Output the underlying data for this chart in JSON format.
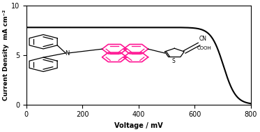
{
  "xlabel": "Voltage / mV",
  "ylabel": "Current Density  mA cm⁻²",
  "xlim": [
    0,
    800
  ],
  "ylim": [
    0,
    10
  ],
  "xticks": [
    0,
    200,
    400,
    600,
    800
  ],
  "yticks": [
    0,
    5,
    10
  ],
  "jsc": 7.8,
  "voc": 718,
  "curve_color": "#000000",
  "bg_color": "#ffffff",
  "pink_color": "#FF1493",
  "black_color": "#000000",
  "figsize": [
    3.73,
    1.89
  ],
  "dpi": 100
}
